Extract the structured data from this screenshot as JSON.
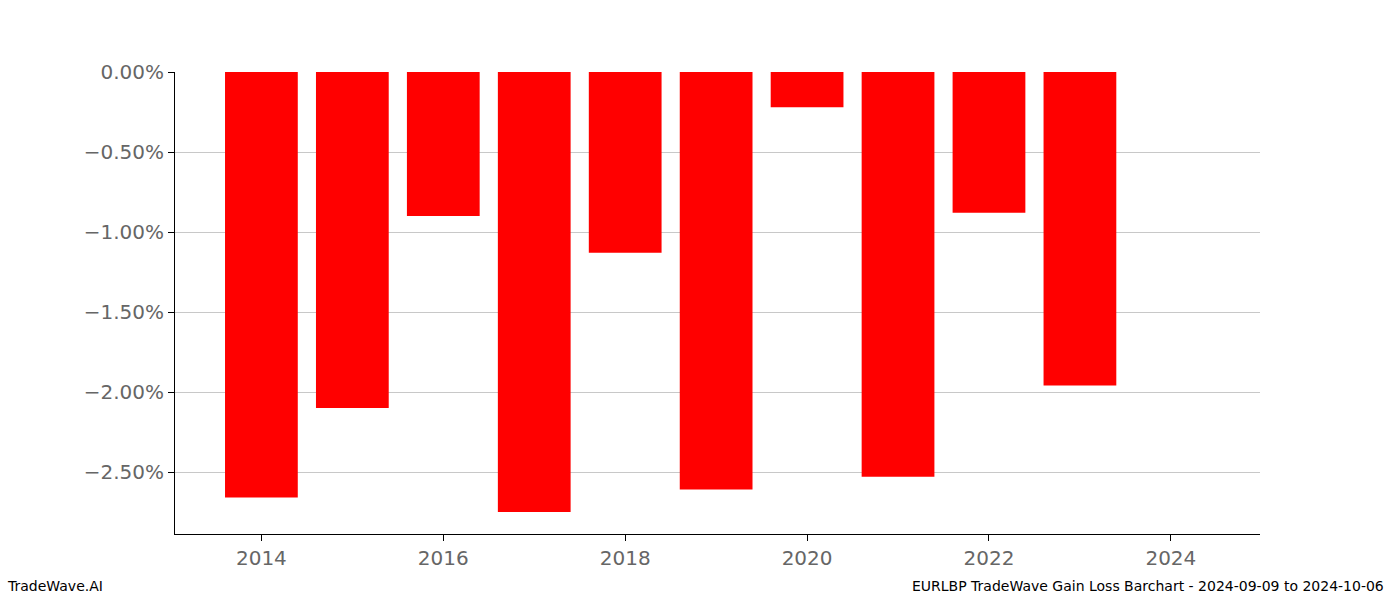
{
  "chart_data": {
    "type": "bar",
    "x": [
      2014,
      2015,
      2016,
      2017,
      2018,
      2019,
      2020,
      2021,
      2022,
      2023
    ],
    "values": [
      -2.66,
      -2.1,
      -0.9,
      -2.75,
      -1.13,
      -2.61,
      -0.22,
      -2.53,
      -0.88,
      -1.96
    ],
    "color": "#ff0000",
    "xlim": [
      2013.05,
      2024.98
    ],
    "xticks": [
      2014,
      2016,
      2018,
      2020,
      2022,
      2024
    ],
    "ylim": [
      -2.8875,
      0
    ],
    "yticks": [
      {
        "value": 0,
        "label": "0.00%"
      },
      {
        "value": -0.5,
        "label": "−0.50%"
      },
      {
        "value": -1.0,
        "label": "−1.00%"
      },
      {
        "value": -1.5,
        "label": "−1.50%"
      },
      {
        "value": -2.0,
        "label": "−2.00%"
      },
      {
        "value": -2.5,
        "label": "−2.50%"
      }
    ],
    "grid": true,
    "annotations": [
      "TradeWave.AI",
      "EURLBP TradeWave Gain Loss Barchart - 2024-09-09 to 2024-10-06"
    ]
  }
}
